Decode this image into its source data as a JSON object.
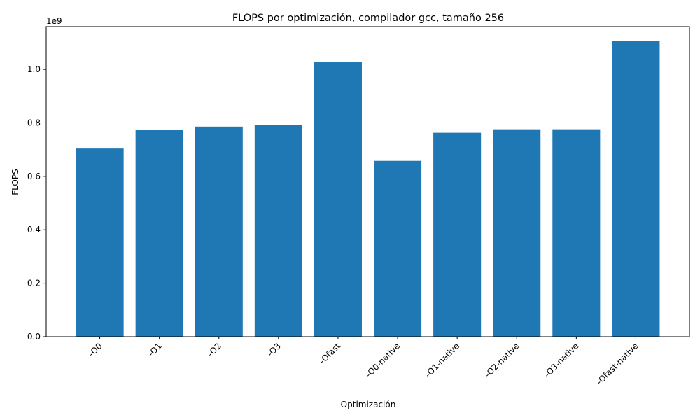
{
  "chart_data": {
    "type": "bar",
    "title": "FLOPS por optimización, compilador gcc, tamaño 256",
    "xlabel": "Optimización",
    "ylabel": "FLOPS",
    "y_offset_label": "1e9",
    "y_multiplier": 1000000000,
    "categories": [
      "-O0",
      "-O1",
      "-O2",
      "-O3",
      "-Ofast",
      "-O0-native",
      "-O1-native",
      "-O2-native",
      "-O3-native",
      "-Ofast-native"
    ],
    "values": [
      704000000,
      775000000,
      786000000,
      792000000,
      1027000000,
      658000000,
      763000000,
      776000000,
      776000000,
      1106000000
    ],
    "ylim": [
      0,
      1160000000
    ],
    "yticks": [
      0,
      200000000,
      400000000,
      600000000,
      800000000,
      1000000000
    ],
    "ytick_labels": [
      "0.0",
      "0.2",
      "0.4",
      "0.6",
      "0.8",
      "1.0"
    ],
    "bar_color": "#1f77b4",
    "grid": false,
    "legend": false
  }
}
